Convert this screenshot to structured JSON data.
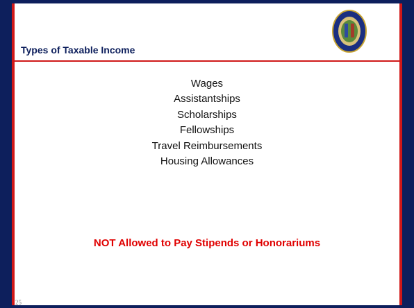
{
  "header": {
    "title": "Types of Taxable Income"
  },
  "items": [
    "Wages",
    "Assistantships",
    "Scholarships",
    "Fellowships",
    "Travel Reimbursements",
    "Housing Allowances"
  ],
  "notice": "NOT Allowed to Pay Stipends or Honorariums",
  "footer": {
    "page_number": "25"
  }
}
